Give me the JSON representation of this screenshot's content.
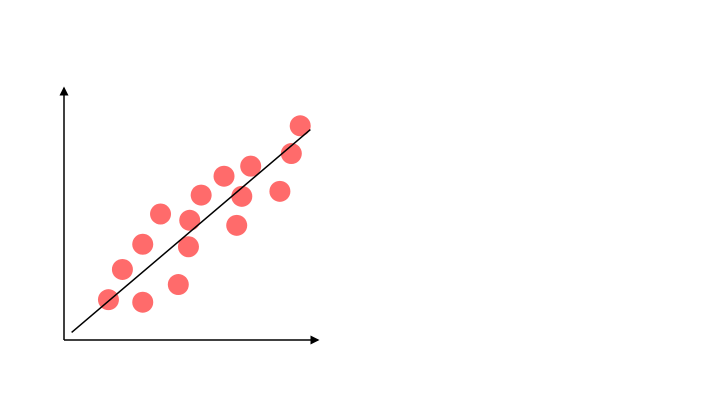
{
  "colors": {
    "background": "#ffffff",
    "point": "#ff6b6b",
    "axis": "#000000",
    "trend_line": "#000000"
  },
  "chart_data": {
    "type": "scatter",
    "title": "",
    "xlabel": "",
    "ylabel": "",
    "axis_ticks": false,
    "grid": false,
    "legend": "none",
    "xlim": [
      0,
      10
    ],
    "ylim": [
      0,
      10
    ],
    "points": [
      {
        "x": 1.75,
        "y": 1.6
      },
      {
        "x": 2.3,
        "y": 2.8
      },
      {
        "x": 3.1,
        "y": 3.8
      },
      {
        "x": 3.8,
        "y": 5.0
      },
      {
        "x": 3.1,
        "y": 1.5
      },
      {
        "x": 4.5,
        "y": 2.2
      },
      {
        "x": 4.9,
        "y": 3.7
      },
      {
        "x": 4.95,
        "y": 4.75
      },
      {
        "x": 5.4,
        "y": 5.75
      },
      {
        "x": 6.3,
        "y": 6.5
      },
      {
        "x": 7.0,
        "y": 5.7
      },
      {
        "x": 6.8,
        "y": 4.55
      },
      {
        "x": 7.35,
        "y": 6.9
      },
      {
        "x": 8.5,
        "y": 5.9
      },
      {
        "x": 8.95,
        "y": 7.4
      },
      {
        "x": 9.3,
        "y": 8.5
      }
    ],
    "trend_line": {
      "x": [
        0.3,
        9.7
      ],
      "y": [
        0.3,
        8.35
      ]
    }
  }
}
